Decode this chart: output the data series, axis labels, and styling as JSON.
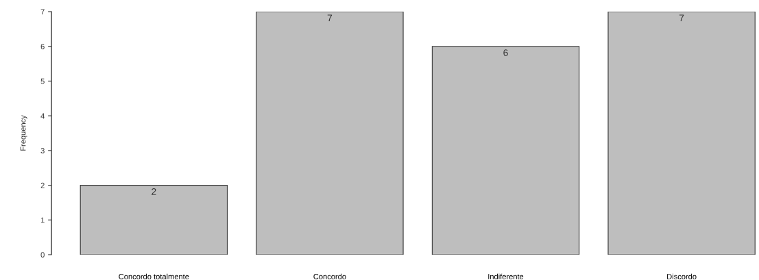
{
  "chart_data": {
    "type": "bar",
    "ylabel": "Frequency",
    "categories": [
      "Concordo totalmente",
      "Concordo",
      "Indiferente",
      "Discordo"
    ],
    "values": [
      2,
      7,
      6,
      7
    ],
    "color": "#bebebe",
    "ylim": [
      0,
      7
    ],
    "yticks": [
      0,
      1,
      2,
      3,
      4,
      5,
      6,
      7
    ],
    "grid": false,
    "data_labels": true
  }
}
